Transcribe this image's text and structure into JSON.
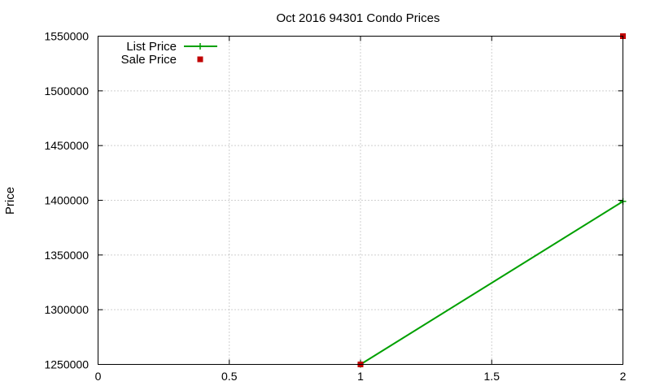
{
  "chart_data": {
    "type": "line",
    "title": "Oct 2016 94301 Condo Prices",
    "xlabel": "",
    "ylabel": "Price",
    "xlim": [
      0,
      2
    ],
    "ylim": [
      1250000,
      1550000
    ],
    "x_ticks": [
      0,
      0.5,
      1,
      1.5,
      2
    ],
    "x_tick_labels": [
      "0",
      "0.5",
      "1",
      "1.5",
      "2"
    ],
    "y_ticks": [
      1250000,
      1300000,
      1350000,
      1400000,
      1450000,
      1500000,
      1550000
    ],
    "y_tick_labels": [
      "1250000",
      "1300000",
      "1350000",
      "1400000",
      "1450000",
      "1500000",
      "1550000"
    ],
    "grid": true,
    "legend_position": "top-left",
    "series": [
      {
        "name": "List Price",
        "style": "line",
        "marker": "plus",
        "color": "#00a000",
        "x": [
          1,
          2
        ],
        "y": [
          1250000,
          1399000
        ]
      },
      {
        "name": "Sale Price",
        "style": "points",
        "marker": "square",
        "color": "#c00000",
        "x": [
          1,
          2
        ],
        "y": [
          1250000,
          1550000
        ]
      }
    ]
  }
}
